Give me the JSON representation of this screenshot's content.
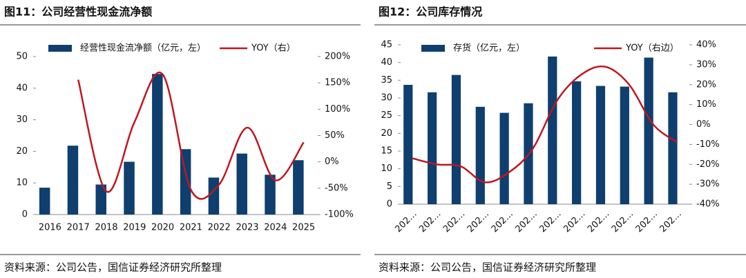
{
  "chart_data": [
    {
      "type": "bar_line",
      "title": "图11：公司经营性现金流净额",
      "source": "资料来源：公司公告，国信证券经济研究所整理",
      "categories": [
        "2016",
        "2017",
        "2018",
        "2019",
        "2020",
        "2021",
        "2022",
        "2023",
        "2024",
        "2025"
      ],
      "series": [
        {
          "name": "经营性现金流净额（亿元，左）",
          "type": "bar",
          "color": "#0e3f6f",
          "values": [
            8.5,
            21.8,
            9.5,
            16.7,
            44.5,
            20.7,
            11.7,
            19.3,
            12.6,
            17.2
          ]
        },
        {
          "name": "YOY（右）",
          "type": "line",
          "axis": "y2",
          "color": "#c0161f",
          "values": [
            null,
            156,
            -56,
            76,
            166,
            -53,
            -43,
            65,
            -35,
            37
          ]
        }
      ],
      "ylim": [
        0,
        50
      ],
      "yticks": [
        0,
        10,
        20,
        30,
        40,
        50
      ],
      "y2lim": [
        -100,
        200
      ],
      "y2ticks": [
        {
          "value": -100,
          "label": "-100%"
        },
        {
          "value": -50,
          "label": "-50%"
        },
        {
          "value": 0,
          "label": "0%"
        },
        {
          "value": 50,
          "label": "50%"
        },
        {
          "value": 100,
          "label": "100%"
        },
        {
          "value": 150,
          "label": "150%"
        },
        {
          "value": 200,
          "label": "200%"
        }
      ],
      "rotate_labels": false
    },
    {
      "type": "bar_line",
      "title": "图12：公司库存情况",
      "source": "资料来源：公司公告，国信证券经济研究所整理",
      "categories": [
        "202…",
        "202…",
        "202…",
        "202…",
        "202…",
        "202…",
        "202…",
        "202…",
        "202…",
        "202…",
        "202…",
        "202…"
      ],
      "series": [
        {
          "name": "存货（亿元，左）",
          "type": "bar",
          "color": "#0e3f6f",
          "values": [
            33.7,
            31.6,
            36.5,
            27.5,
            25.8,
            28.5,
            41.7,
            34.7,
            33.4,
            33.2,
            41.4,
            31.6
          ]
        },
        {
          "name": "YOY（右边）",
          "type": "line",
          "axis": "y2",
          "color": "#c0161f",
          "values": [
            -17,
            -20,
            -21,
            -29,
            -24,
            -12,
            12,
            25,
            29,
            20,
            0,
            -9
          ]
        }
      ],
      "ylim": [
        0,
        45
      ],
      "yticks": [
        0,
        5,
        10,
        15,
        20,
        25,
        30,
        35,
        40,
        45
      ],
      "y2lim": [
        -40,
        40
      ],
      "y2ticks": [
        {
          "value": -40,
          "label": "-40%"
        },
        {
          "value": -30,
          "label": "-30%"
        },
        {
          "value": -20,
          "label": "-20%"
        },
        {
          "value": -10,
          "label": "-10%"
        },
        {
          "value": 0,
          "label": "0%"
        },
        {
          "value": 10,
          "label": "10%"
        },
        {
          "value": 20,
          "label": "20%"
        },
        {
          "value": 30,
          "label": "30%"
        },
        {
          "value": 40,
          "label": "40%"
        }
      ],
      "rotate_labels": true
    }
  ]
}
